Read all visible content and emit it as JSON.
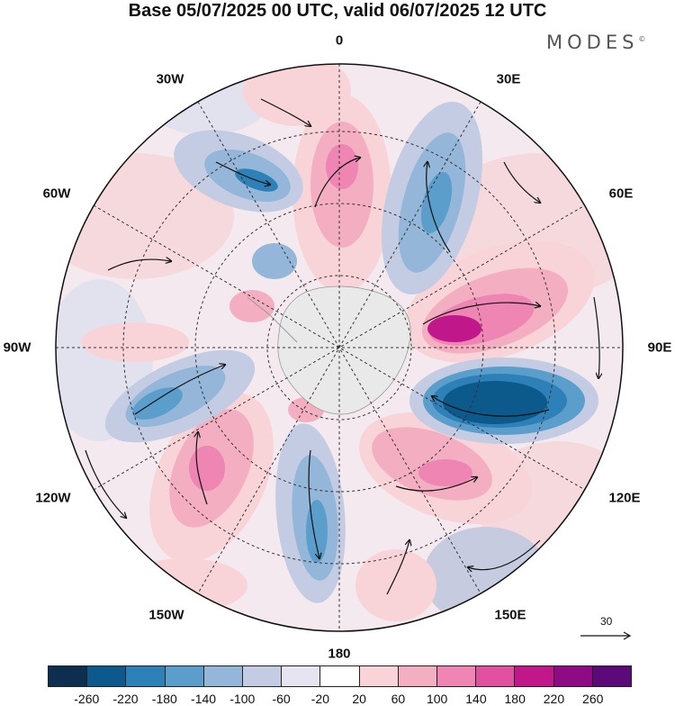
{
  "title": "Base 05/07/2025 00 UTC, valid 06/07/2025 12 UTC",
  "brand": "MODES",
  "brand_mark": "©",
  "longitude_labels": {
    "n0": "0",
    "n30e": "30E",
    "n60e": "60E",
    "n90e": "90E",
    "n120e": "120E",
    "n150e": "150E",
    "n180": "180",
    "n150w": "150W",
    "n120w": "120W",
    "n90w": "90W",
    "n60w": "60W",
    "n30w": "30W"
  },
  "reference_vector": {
    "label": "30"
  },
  "colorbar": {
    "colors": [
      "#0d2e4e",
      "#0c5a8c",
      "#2e80b8",
      "#5b9ecb",
      "#94b6d8",
      "#c3cce3",
      "#e6e4f0",
      "#ffffff",
      "#f8d4d8",
      "#f4aec2",
      "#ee85b2",
      "#e0529f",
      "#c0188a",
      "#8f0a85",
      "#5c0a7a"
    ],
    "ticks": [
      "-260",
      "-220",
      "-180",
      "-140",
      "-100",
      "-60",
      "-20",
      "20",
      "60",
      "100",
      "140",
      "180",
      "220",
      "260"
    ]
  }
}
